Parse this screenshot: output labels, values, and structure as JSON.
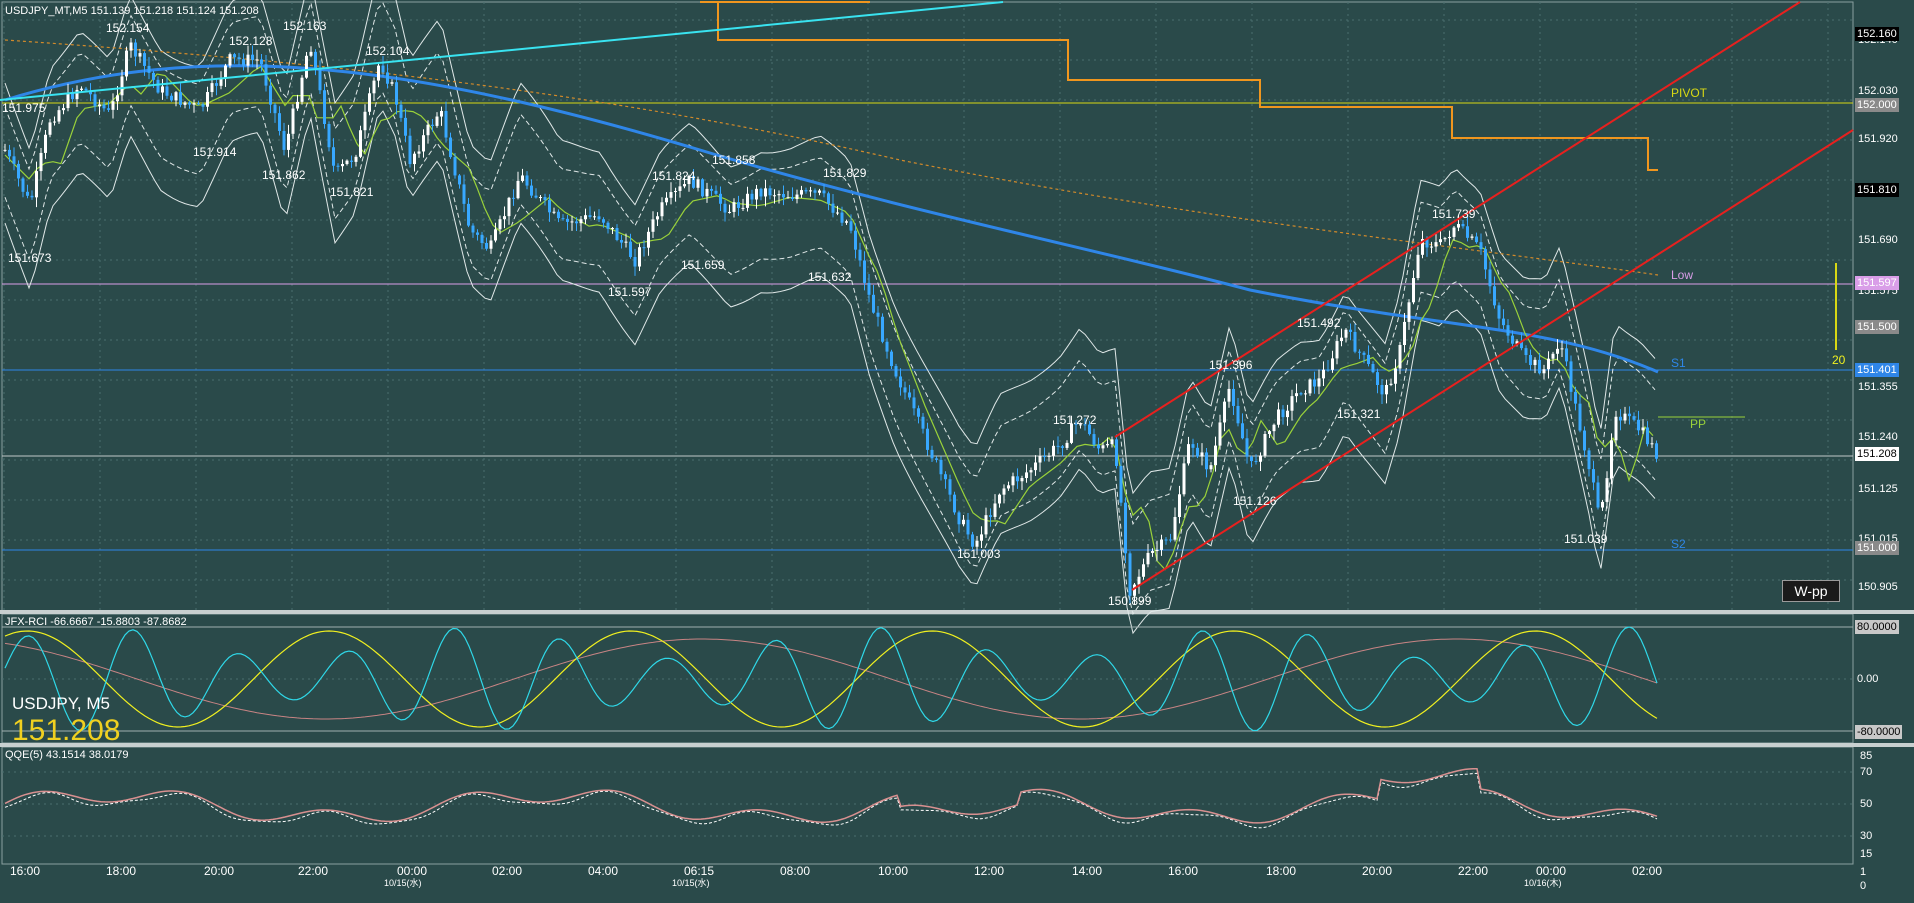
{
  "colors": {
    "background": "#2a4a4a",
    "grid": "#4a6e6e",
    "candle": "#38a8ff",
    "candle_up": "#ffffff",
    "ma_blue": "#2f86e8",
    "ma_green": "#9ad23a",
    "ma_orange_dotted": "#d28a2a",
    "channel_red": "#e8201e",
    "cyan_line": "#39e3f0",
    "orange_step": "#f0961e",
    "pivot_yellow": "#d8d814",
    "low_pink": "#d99ee8",
    "s_blue": "#2f86e8",
    "rci_cyan": "#2fd8e8",
    "rci_yellow": "#f0f020",
    "rci_pink": "#c88484",
    "qqe_pink": "#d89090"
  },
  "chart": {
    "title": "USDJPY_MT,M5  151.139 151.218 151.124 151.208",
    "symbol_label": "USDJPY, M5",
    "current_price": "151.208",
    "wpp_button": "W-pp",
    "level_labels": {
      "pivot": "PIVOT",
      "low": "Low",
      "s1": "S1",
      "pp": "PP",
      "s2": "S2"
    },
    "vertical_marker": "20",
    "price_axis": [
      "152.140",
      "152.030",
      "151.920",
      "151.690",
      "151.575",
      "151.465",
      "151.355",
      "151.240",
      "151.125",
      "151.015",
      "150.905"
    ],
    "price_tags": [
      {
        "text": "152.160",
        "bg": "#000000"
      },
      {
        "text": "152.000",
        "bg": "#8a8a8a"
      },
      {
        "text": "151.810",
        "bg": "#000000"
      },
      {
        "text": "151.597",
        "bg": "#d99ee8"
      },
      {
        "text": "151.500",
        "bg": "#8a8a8a"
      },
      {
        "text": "151.401",
        "bg": "#2f86e8"
      },
      {
        "text": "151.208",
        "bg": "#ffffff"
      },
      {
        "text": "151.000",
        "bg": "#8a8a8a"
      }
    ],
    "price_labels": [
      {
        "text": "151.975"
      },
      {
        "text": "152.154"
      },
      {
        "text": "152.128"
      },
      {
        "text": "152.163"
      },
      {
        "text": "152.104"
      },
      {
        "text": "151.914"
      },
      {
        "text": "151.862"
      },
      {
        "text": "151.821"
      },
      {
        "text": "151.673"
      },
      {
        "text": "151.824"
      },
      {
        "text": "151.858"
      },
      {
        "text": "151.829"
      },
      {
        "text": "151.659"
      },
      {
        "text": "151.597"
      },
      {
        "text": "151.632"
      },
      {
        "text": "151.272"
      },
      {
        "text": "151.003"
      },
      {
        "text": "150.899"
      },
      {
        "text": "151.396"
      },
      {
        "text": "151.492"
      },
      {
        "text": "151.126"
      },
      {
        "text": "151.321"
      },
      {
        "text": "151.739"
      },
      {
        "text": "151.039"
      }
    ],
    "time_axis": [
      "16:00",
      "18:00",
      "20:00",
      "22:00",
      "00:00",
      "02:00",
      "04:00",
      "06:15",
      "08:00",
      "10:00",
      "12:00",
      "14:00",
      "16:00",
      "18:00",
      "20:00",
      "22:00",
      "00:00",
      "02:00"
    ],
    "date_labels": [
      "10/15(水)",
      "10/15(水)",
      "10/16(木)"
    ]
  },
  "rci": {
    "title": "JFX-RCI -66.6667 -15.8803 -87.8682",
    "axis": [
      "80.0000",
      "0.00",
      "-80.0000"
    ]
  },
  "qqe": {
    "title": "QQE(5) 43.1514 38.0179",
    "axis": [
      "85",
      "70",
      "50",
      "30",
      "15",
      "1",
      "0"
    ]
  }
}
